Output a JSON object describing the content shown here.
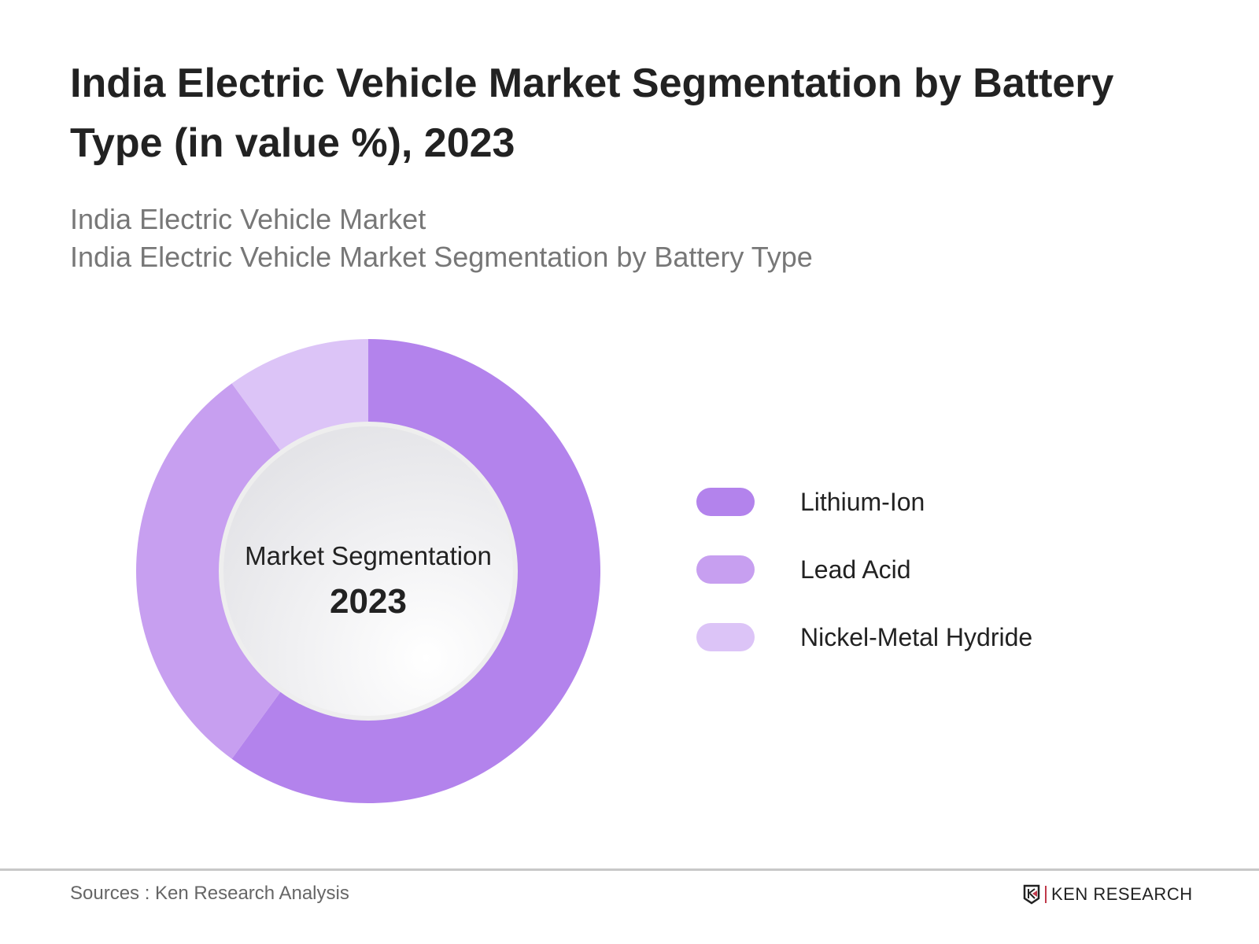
{
  "chart_data": {
    "type": "pie",
    "title": "India Electric Vehicle Market Segmentation by Battery Type (in value %), 2023",
    "subtitles": [
      "India Electric Vehicle Market",
      "India Electric Vehicle Market Segmentation by Battery Type"
    ],
    "center_label": "Market Segmentation",
    "center_year": "2023",
    "donut": true,
    "legend_position": "right",
    "categories": [
      "Lithium-Ion",
      "Lead Acid",
      "Nickel-Metal Hydride"
    ],
    "values": [
      60,
      30,
      10
    ],
    "colors": [
      "#b383ec",
      "#c79ff0",
      "#dcc4f7"
    ]
  },
  "footer": {
    "source": "Sources : Ken Research Analysis",
    "logo": "KEN RESEARCH"
  }
}
